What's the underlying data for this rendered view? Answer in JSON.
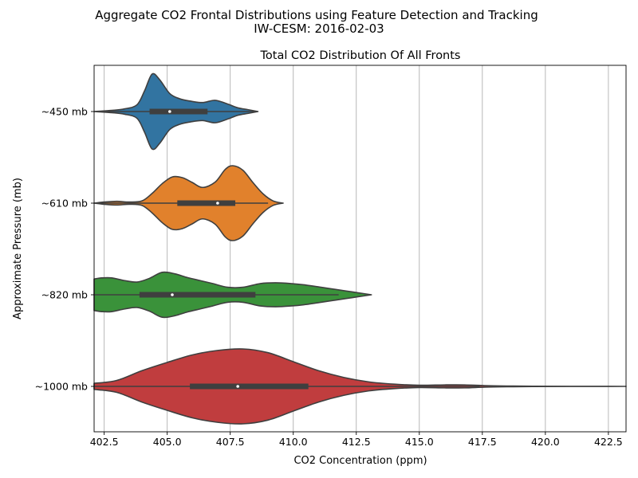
{
  "figure": {
    "suptitle_line1": "Aggregate CO2 Frontal Distributions using Feature Detection and Tracking",
    "suptitle_line2": "IW-CESM: 2016-02-03"
  },
  "chart_data": {
    "type": "violin",
    "orientation": "horizontal",
    "title": "Total CO2 Distribution Of All Fronts",
    "xlabel": "CO2 Concentration (ppm)",
    "ylabel": "Approximate Pressure (mb)",
    "xlim": [
      402.1,
      423.2
    ],
    "xticks": [
      402.5,
      405.0,
      407.5,
      410.0,
      412.5,
      415.0,
      417.5,
      420.0,
      422.5
    ],
    "xtick_labels": [
      "402.5",
      "405.0",
      "407.5",
      "410.0",
      "412.5",
      "415.0",
      "417.5",
      "420.0",
      "422.5"
    ],
    "grid": "x",
    "categories": [
      "~450 mb",
      "~610 mb",
      "~820 mb",
      "~1000 mb"
    ],
    "series": [
      {
        "category": "~450 mb",
        "color": "#3274a1",
        "range": [
          402.1,
          408.6
        ],
        "quartiles": [
          404.3,
          406.6
        ],
        "median": 405.1,
        "whiskers": [
          402.3,
          408.5
        ],
        "density_x": [
          402.1,
          402.8,
          403.3,
          403.8,
          404.1,
          404.4,
          404.7,
          405.1,
          405.5,
          405.9,
          406.4,
          406.9,
          407.4,
          407.8,
          408.2,
          408.6
        ],
        "density_y": [
          0,
          0.03,
          0.07,
          0.18,
          0.55,
          1.0,
          0.85,
          0.48,
          0.34,
          0.28,
          0.24,
          0.3,
          0.2,
          0.1,
          0.05,
          0
        ]
      },
      {
        "category": "~610 mb",
        "color": "#e1812c",
        "range": [
          402.1,
          409.6
        ],
        "quartiles": [
          405.4,
          407.7
        ],
        "median": 407.0,
        "whiskers": [
          402.2,
          409.0
        ],
        "density_x": [
          402.1,
          402.5,
          403.0,
          403.5,
          404.0,
          404.4,
          404.8,
          405.2,
          405.6,
          406.0,
          406.4,
          406.9,
          407.3,
          407.6,
          408.0,
          408.4,
          408.8,
          409.2,
          409.6
        ],
        "density_y": [
          0,
          0.03,
          0.05,
          0.03,
          0.06,
          0.26,
          0.52,
          0.7,
          0.68,
          0.55,
          0.42,
          0.56,
          0.9,
          1.0,
          0.88,
          0.55,
          0.25,
          0.06,
          0
        ]
      },
      {
        "category": "~820 mb",
        "color": "#3a923a",
        "range": [
          402.1,
          413.1
        ],
        "quartiles": [
          403.9,
          408.5
        ],
        "median": 405.2,
        "whiskers": [
          402.1,
          411.8
        ],
        "density_x": [
          402.1,
          402.4,
          402.8,
          403.3,
          403.8,
          404.3,
          404.8,
          405.3,
          405.8,
          406.3,
          406.8,
          407.4,
          408.0,
          408.7,
          409.3,
          409.9,
          410.5,
          411.1,
          411.6,
          412.1,
          412.6,
          413.1
        ],
        "density_y": [
          0.42,
          0.45,
          0.45,
          0.38,
          0.34,
          0.44,
          0.6,
          0.56,
          0.46,
          0.38,
          0.3,
          0.2,
          0.2,
          0.3,
          0.32,
          0.3,
          0.26,
          0.2,
          0.15,
          0.1,
          0.05,
          0
        ]
      },
      {
        "category": "~1000 mb",
        "color": "#c03d3e",
        "range": [
          402.1,
          423.2
        ],
        "quartiles": [
          405.9,
          410.6
        ],
        "median": 407.8,
        "whiskers": [
          402.1,
          417.4
        ],
        "density_x": [
          402.1,
          403.0,
          404.0,
          405.0,
          406.0,
          407.0,
          408.0,
          409.0,
          410.0,
          411.0,
          412.0,
          413.0,
          414.0,
          415.0,
          416.0,
          416.8,
          417.6,
          418.5,
          419.5,
          421.0,
          423.2
        ],
        "density_y": [
          0.08,
          0.16,
          0.42,
          0.64,
          0.84,
          0.96,
          1.0,
          0.9,
          0.66,
          0.42,
          0.24,
          0.12,
          0.06,
          0.03,
          0.04,
          0.04,
          0.02,
          0.01,
          0.005,
          0.002,
          0
        ]
      }
    ]
  }
}
